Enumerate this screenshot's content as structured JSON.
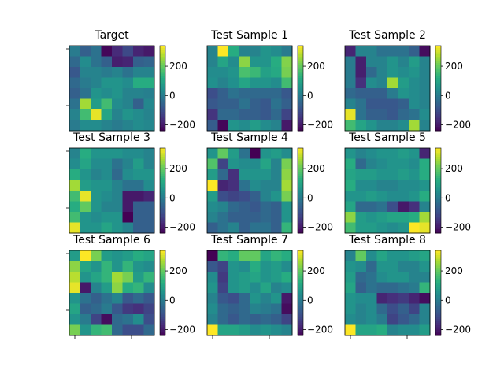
{
  "chart_data": {
    "type": "heatmap",
    "colormap": "viridis",
    "color_range": [
      -240,
      340
    ],
    "colorbar_ticks": [
      "200",
      "0",
      "−200"
    ],
    "colorbar_tick_values": [
      200,
      0,
      -200
    ],
    "panels": [
      {
        "title": "Target",
        "z": [
          [
            0,
            -60,
            -20,
            -230,
            -170,
            -110,
            -180,
            -200
          ],
          [
            -40,
            40,
            -20,
            -60,
            -190,
            -180,
            -60,
            -50
          ],
          [
            -80,
            20,
            20,
            0,
            20,
            -20,
            20,
            20
          ],
          [
            -40,
            0,
            20,
            60,
            60,
            40,
            120,
            120
          ],
          [
            -60,
            -20,
            60,
            40,
            60,
            20,
            20,
            10
          ],
          [
            -20,
            260,
            80,
            160,
            40,
            20,
            -60,
            30
          ],
          [
            20,
            160,
            320,
            100,
            20,
            60,
            40,
            20
          ],
          [
            0,
            40,
            40,
            20,
            0,
            20,
            40,
            30
          ]
        ]
      },
      {
        "title": "Test Sample 1",
        "z": [
          [
            20,
            340,
            120,
            20,
            20,
            60,
            40,
            0
          ],
          [
            20,
            100,
            40,
            240,
            60,
            60,
            120,
            230
          ],
          [
            40,
            40,
            60,
            170,
            150,
            90,
            110,
            220
          ],
          [
            50,
            20,
            50,
            100,
            60,
            60,
            40,
            160
          ],
          [
            -100,
            -60,
            -20,
            -40,
            -40,
            -40,
            -40,
            -80
          ],
          [
            -80,
            -60,
            -60,
            -20,
            -60,
            -80,
            -20,
            -60
          ],
          [
            -150,
            -40,
            -40,
            -60,
            -60,
            -80,
            -40,
            -120
          ],
          [
            -70,
            -230,
            60,
            40,
            80,
            40,
            20,
            -200
          ]
        ]
      },
      {
        "title": "Test Sample 2",
        "z": [
          [
            -180,
            20,
            20,
            -20,
            -20,
            -20,
            -60,
            -220
          ],
          [
            0,
            -190,
            20,
            20,
            60,
            20,
            80,
            20
          ],
          [
            0,
            -190,
            -40,
            20,
            60,
            40,
            60,
            20
          ],
          [
            0,
            -160,
            40,
            20,
            260,
            80,
            40,
            20
          ],
          [
            -40,
            -60,
            -60,
            -60,
            0,
            60,
            40,
            20
          ],
          [
            20,
            -20,
            -80,
            -80,
            -80,
            -60,
            40,
            20
          ],
          [
            320,
            -20,
            -60,
            -60,
            -80,
            -40,
            -20,
            40
          ],
          [
            160,
            100,
            60,
            20,
            20,
            40,
            260,
            20
          ]
        ]
      },
      {
        "title": "Test Sample 3",
        "z": [
          [
            20,
            120,
            60,
            60,
            60,
            40,
            40,
            20
          ],
          [
            40,
            100,
            40,
            40,
            -20,
            20,
            80,
            20
          ],
          [
            120,
            60,
            20,
            40,
            -40,
            40,
            60,
            60
          ],
          [
            260,
            80,
            60,
            60,
            20,
            -20,
            -20,
            40
          ],
          [
            160,
            320,
            60,
            40,
            20,
            -200,
            -200,
            -180
          ],
          [
            120,
            200,
            60,
            20,
            20,
            -200,
            -60,
            -60
          ],
          [
            160,
            60,
            40,
            60,
            60,
            -240,
            -60,
            -60
          ],
          [
            320,
            60,
            60,
            100,
            60,
            20,
            -60,
            -60
          ]
        ]
      },
      {
        "title": "Test Sample 4",
        "z": [
          [
            60,
            200,
            80,
            -20,
            -240,
            60,
            80,
            40
          ],
          [
            180,
            -120,
            60,
            40,
            40,
            100,
            20,
            220
          ],
          [
            80,
            -40,
            -160,
            60,
            60,
            60,
            20,
            240
          ],
          [
            340,
            -180,
            -160,
            -20,
            40,
            20,
            20,
            260
          ],
          [
            80,
            -100,
            -120,
            -100,
            -60,
            20,
            60,
            220
          ],
          [
            40,
            20,
            -40,
            -60,
            -80,
            -40,
            -60,
            60
          ],
          [
            20,
            -20,
            -60,
            -60,
            -60,
            -40,
            -60,
            60
          ],
          [
            -60,
            -20,
            20,
            -60,
            -20,
            -20,
            -60,
            140
          ]
        ]
      },
      {
        "title": "Test Sample 5",
        "z": [
          [
            60,
            20,
            40,
            60,
            60,
            80,
            60,
            -180
          ],
          [
            120,
            -40,
            20,
            40,
            60,
            60,
            40,
            120
          ],
          [
            100,
            80,
            80,
            60,
            60,
            80,
            60,
            120
          ],
          [
            120,
            40,
            40,
            20,
            20,
            40,
            40,
            60
          ],
          [
            60,
            60,
            80,
            60,
            40,
            40,
            60,
            120
          ],
          [
            100,
            -40,
            -40,
            -20,
            -100,
            -200,
            -160,
            20
          ],
          [
            240,
            80,
            60,
            80,
            100,
            100,
            120,
            260
          ],
          [
            160,
            80,
            80,
            60,
            40,
            60,
            340,
            320
          ]
        ]
      },
      {
        "title": "Test Sample 6",
        "z": [
          [
            80,
            340,
            220,
            80,
            60,
            80,
            120,
            100
          ],
          [
            240,
            100,
            60,
            140,
            60,
            140,
            60,
            40
          ],
          [
            280,
            60,
            100,
            140,
            260,
            220,
            80,
            140
          ],
          [
            320,
            -200,
            20,
            80,
            240,
            120,
            140,
            40
          ],
          [
            60,
            -20,
            -60,
            -20,
            20,
            -80,
            -40,
            -80
          ],
          [
            100,
            -60,
            -40,
            0,
            -80,
            -140,
            -160,
            -120
          ],
          [
            60,
            0,
            -120,
            -220,
            -40,
            -20,
            40,
            -100
          ],
          [
            220,
            60,
            140,
            160,
            -40,
            -100,
            -100,
            -40
          ]
        ]
      },
      {
        "title": "Test Sample 7",
        "z": [
          [
            -240,
            140,
            120,
            200,
            200,
            100,
            140,
            120
          ],
          [
            -80,
            -120,
            60,
            40,
            120,
            60,
            80,
            40
          ],
          [
            40,
            -140,
            60,
            80,
            100,
            60,
            80,
            120
          ],
          [
            60,
            -120,
            60,
            80,
            40,
            100,
            20,
            40
          ],
          [
            20,
            -80,
            -100,
            -40,
            60,
            20,
            60,
            -200
          ],
          [
            40,
            -40,
            -60,
            -40,
            20,
            0,
            -20,
            -220
          ],
          [
            20,
            -40,
            -80,
            -40,
            -60,
            -40,
            -60,
            -120
          ],
          [
            340,
            100,
            100,
            80,
            40,
            60,
            40,
            20
          ]
        ]
      },
      {
        "title": "Test Sample 8",
        "z": [
          [
            20,
            200,
            40,
            100,
            60,
            60,
            80,
            100
          ],
          [
            60,
            40,
            -40,
            60,
            60,
            20,
            20,
            60
          ],
          [
            80,
            -40,
            -20,
            40,
            60,
            60,
            20,
            20
          ],
          [
            100,
            -60,
            -20,
            -40,
            -40,
            -20,
            0,
            140
          ],
          [
            60,
            40,
            40,
            -180,
            -160,
            -140,
            -180,
            -220
          ],
          [
            60,
            20,
            40,
            -40,
            -100,
            -60,
            -120,
            20
          ],
          [
            40,
            20,
            40,
            0,
            -120,
            -80,
            -40,
            20
          ],
          [
            340,
            100,
            100,
            120,
            20,
            40,
            40,
            80
          ]
        ]
      }
    ]
  }
}
